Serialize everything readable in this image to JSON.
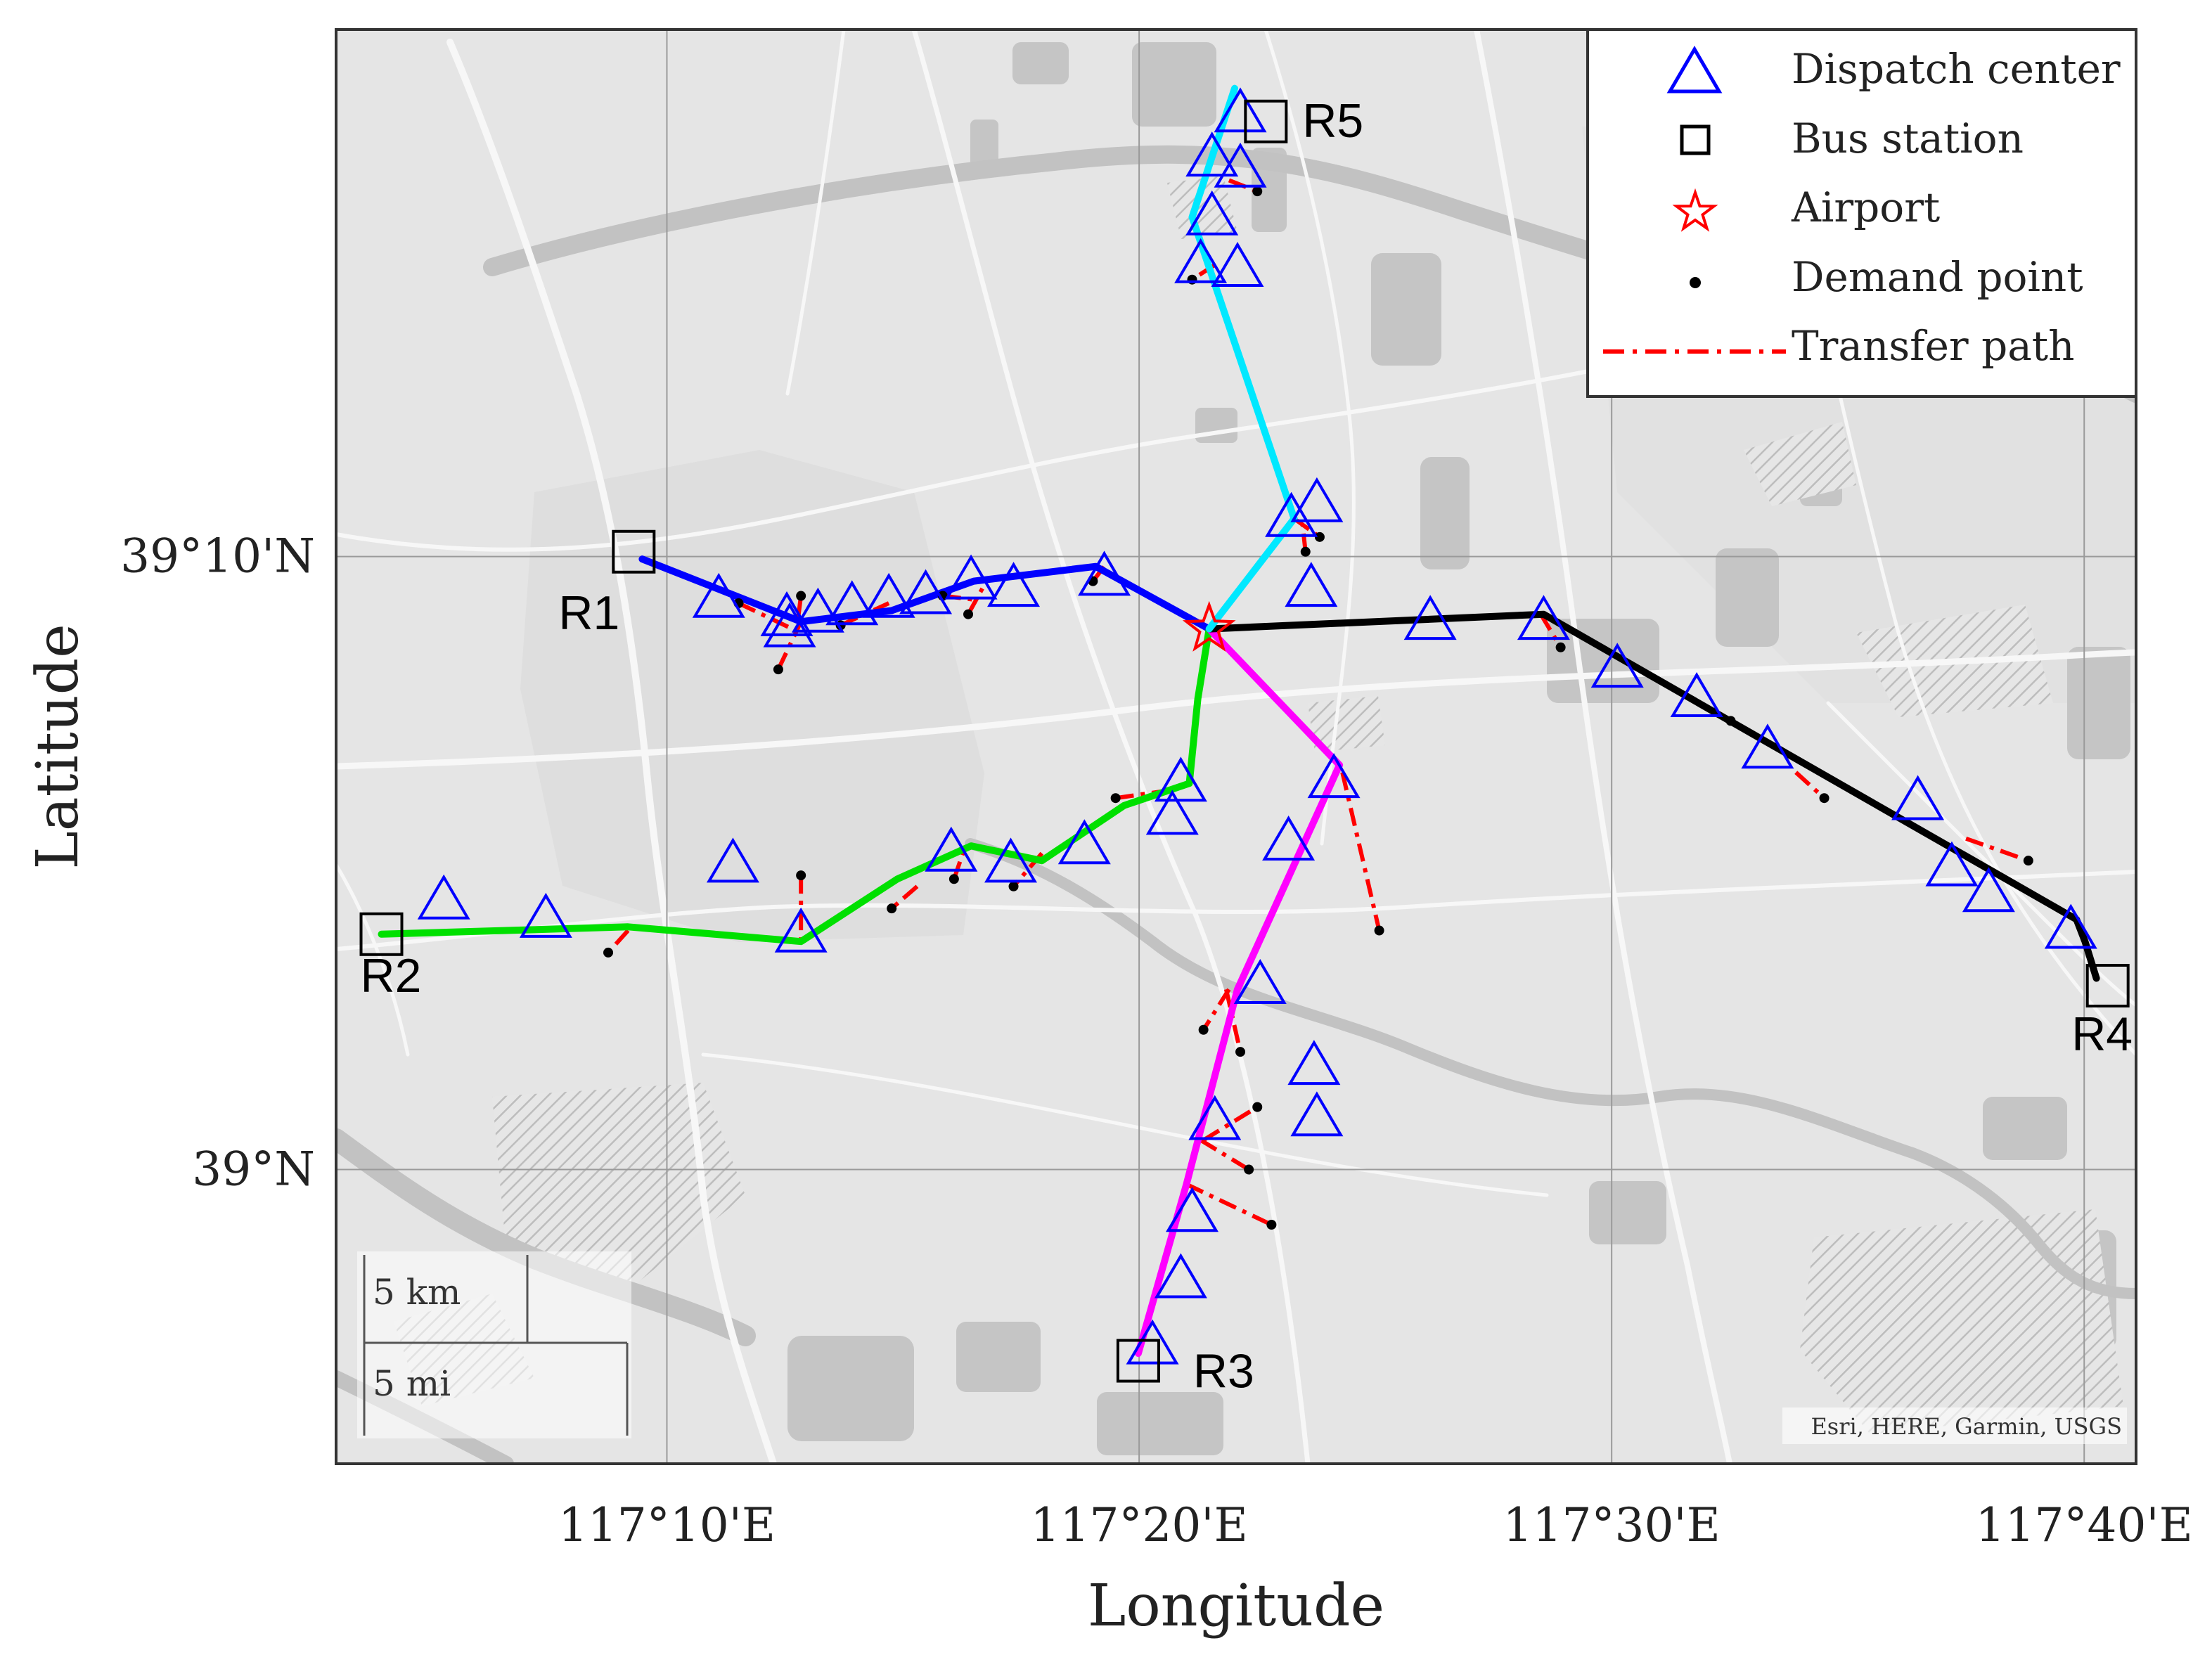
{
  "chart_data": {
    "type": "map",
    "xlabel": "Longitude",
    "ylabel": "Latitude",
    "x_ticks": [
      {
        "value": 117.1667,
        "label": "117°10'E"
      },
      {
        "value": 117.3333,
        "label": "117°20'E"
      },
      {
        "value": 117.5,
        "label": "117°30'E"
      },
      {
        "value": 117.6667,
        "label": "117°40'E"
      }
    ],
    "y_ticks": [
      {
        "value": 39.1667,
        "label": "39°10'N"
      },
      {
        "value": 39.0,
        "label": "39°N"
      }
    ],
    "xlim": [
      117.05,
      117.685
    ],
    "ylim": [
      38.92,
      39.31
    ],
    "grid": true,
    "legend_position": "top-right",
    "legend": [
      {
        "label": "Dispatch center",
        "marker": "triangle",
        "color": "#0000ff"
      },
      {
        "label": "Bus station",
        "marker": "square",
        "color": "#000000"
      },
      {
        "label": "Airport",
        "marker": "star",
        "color": "#ff0000"
      },
      {
        "label": "Demand point",
        "marker": "dot",
        "color": "#000000"
      },
      {
        "label": "Transfer path",
        "marker": "dashdot-line",
        "color": "#ff0000"
      }
    ],
    "attribution": "Esri, HERE, Garmin, USGS",
    "scale_bar": {
      "km_label": "5 km",
      "mi_label": "5 mi"
    },
    "airport": [
      117.358,
      39.147
    ],
    "bus_stations": [
      {
        "name": "R1",
        "lon": 117.155,
        "lat": 39.168
      },
      {
        "name": "R2",
        "lon": 117.066,
        "lat": 39.064
      },
      {
        "name": "R3",
        "lon": 117.333,
        "lat": 38.948
      },
      {
        "name": "R4",
        "lon": 117.675,
        "lat": 39.05
      },
      {
        "name": "R5",
        "lon": 117.378,
        "lat": 39.285
      }
    ],
    "routes": [
      {
        "name": "R1",
        "color": "#0000ff",
        "points": [
          [
            117.158,
            39.166
          ],
          [
            117.214,
            39.149
          ],
          [
            117.246,
            39.152
          ],
          [
            117.275,
            39.16
          ],
          [
            117.318,
            39.164
          ],
          [
            117.358,
            39.147
          ]
        ]
      },
      {
        "name": "R2",
        "color": "#00e000",
        "points": [
          [
            117.066,
            39.064
          ],
          [
            117.153,
            39.066
          ],
          [
            117.214,
            39.062
          ],
          [
            117.248,
            39.079
          ],
          [
            117.274,
            39.088
          ],
          [
            117.299,
            39.084
          ],
          [
            117.328,
            39.099
          ],
          [
            117.351,
            39.105
          ],
          [
            117.354,
            39.128
          ],
          [
            117.358,
            39.147
          ]
        ]
      },
      {
        "name": "R3",
        "color": "#ff00ff",
        "points": [
          [
            117.333,
            38.95
          ],
          [
            117.35,
            38.996
          ],
          [
            117.368,
            39.049
          ],
          [
            117.404,
            39.11
          ],
          [
            117.358,
            39.147
          ]
        ]
      },
      {
        "name": "R4",
        "color": "#000000",
        "points": [
          [
            117.358,
            39.147
          ],
          [
            117.476,
            39.151
          ],
          [
            117.553,
            39.117
          ],
          [
            117.664,
            39.068
          ],
          [
            117.667,
            39.062
          ],
          [
            117.671,
            39.052
          ]
        ]
      },
      {
        "name": "R5",
        "color": "#00e8ff",
        "points": [
          [
            117.358,
            39.147
          ],
          [
            117.388,
            39.177
          ],
          [
            117.352,
            39.259
          ],
          [
            117.367,
            39.294
          ]
        ]
      }
    ],
    "dispatch_centers": [
      [
        117.369,
        39.287
      ],
      [
        117.359,
        39.275
      ],
      [
        117.369,
        39.272
      ],
      [
        117.359,
        39.259
      ],
      [
        117.355,
        39.246
      ],
      [
        117.368,
        39.245
      ],
      [
        117.387,
        39.177
      ],
      [
        117.396,
        39.181
      ],
      [
        117.394,
        39.158
      ],
      [
        117.21,
        39.147
      ],
      [
        117.209,
        39.15
      ],
      [
        117.22,
        39.151
      ],
      [
        117.232,
        39.153
      ],
      [
        117.245,
        39.155
      ],
      [
        117.258,
        39.156
      ],
      [
        117.274,
        39.16
      ],
      [
        117.289,
        39.158
      ],
      [
        117.321,
        39.161
      ],
      [
        117.185,
        39.155
      ],
      [
        117.348,
        39.105
      ],
      [
        117.345,
        39.096
      ],
      [
        117.314,
        39.088
      ],
      [
        117.288,
        39.083
      ],
      [
        117.267,
        39.086
      ],
      [
        117.19,
        39.083
      ],
      [
        117.124,
        39.068
      ],
      [
        117.088,
        39.073
      ],
      [
        117.214,
        39.064
      ],
      [
        117.402,
        39.106
      ],
      [
        117.386,
        39.089
      ],
      [
        117.376,
        39.05
      ],
      [
        117.395,
        39.028
      ],
      [
        117.396,
        39.014
      ],
      [
        117.36,
        39.013
      ],
      [
        117.352,
        38.988
      ],
      [
        117.348,
        38.97
      ],
      [
        117.338,
        38.952
      ],
      [
        117.436,
        39.149
      ],
      [
        117.476,
        39.149
      ],
      [
        117.502,
        39.136
      ],
      [
        117.53,
        39.128
      ],
      [
        117.555,
        39.114
      ],
      [
        117.608,
        39.1
      ],
      [
        117.62,
        39.082
      ],
      [
        117.633,
        39.075
      ],
      [
        117.662,
        39.065
      ]
    ],
    "transfer_paths": [
      [
        [
          117.192,
          39.154
        ],
        [
          117.211,
          39.147
        ]
      ],
      [
        [
          117.206,
          39.136
        ],
        [
          117.214,
          39.149
        ]
      ],
      [
        [
          117.213,
          39.15
        ],
        [
          117.214,
          39.156
        ]
      ],
      [
        [
          117.228,
          39.148
        ],
        [
          117.245,
          39.154
        ]
      ],
      [
        [
          117.264,
          39.156
        ],
        [
          117.275,
          39.155
        ]
      ],
      [
        [
          117.273,
          39.151
        ],
        [
          117.278,
          39.158
        ]
      ],
      [
        [
          117.317,
          39.16
        ],
        [
          117.322,
          39.165
        ]
      ],
      [
        [
          117.388,
          39.177
        ],
        [
          117.397,
          39.172
        ]
      ],
      [
        [
          117.392,
          39.168
        ],
        [
          117.391,
          39.175
        ]
      ],
      [
        [
          117.475,
          39.151
        ],
        [
          117.482,
          39.142
        ]
      ],
      [
        [
          117.542,
          39.122
        ],
        [
          117.553,
          39.117
        ]
      ],
      [
        [
          117.565,
          39.108
        ],
        [
          117.575,
          39.101
        ]
      ],
      [
        [
          117.625,
          39.09
        ],
        [
          117.647,
          39.084
        ]
      ],
      [
        [
          117.36,
          39.246
        ],
        [
          117.352,
          39.242
        ]
      ],
      [
        [
          117.365,
          39.269
        ],
        [
          117.375,
          39.266
        ]
      ],
      [
        [
          117.405,
          39.108
        ],
        [
          117.418,
          39.065
        ]
      ],
      [
        [
          117.365,
          39.049
        ],
        [
          117.356,
          39.038
        ]
      ],
      [
        [
          117.364,
          39.049
        ],
        [
          117.369,
          39.032
        ]
      ],
      [
        [
          117.356,
          39.008
        ],
        [
          117.375,
          39.017
        ]
      ],
      [
        [
          117.355,
          39.008
        ],
        [
          117.372,
          39.0
        ]
      ],
      [
        [
          117.35,
          38.996
        ],
        [
          117.38,
          38.985
        ]
      ],
      [
        [
          117.214,
          39.08
        ],
        [
          117.214,
          39.062
        ]
      ],
      [
        [
          117.153,
          39.065
        ],
        [
          117.146,
          39.059
        ]
      ],
      [
        [
          117.255,
          39.077
        ],
        [
          117.246,
          39.071
        ]
      ],
      [
        [
          117.268,
          39.079
        ],
        [
          117.272,
          39.088
        ]
      ],
      [
        [
          117.299,
          39.086
        ],
        [
          117.289,
          39.077
        ]
      ],
      [
        [
          117.325,
          39.101
        ],
        [
          117.343,
          39.103
        ]
      ]
    ],
    "demand_points": [
      [
        117.192,
        39.154
      ],
      [
        117.206,
        39.136
      ],
      [
        117.214,
        39.156
      ],
      [
        117.228,
        39.148
      ],
      [
        117.264,
        39.156
      ],
      [
        117.273,
        39.151
      ],
      [
        117.317,
        39.16
      ],
      [
        117.397,
        39.172
      ],
      [
        117.392,
        39.168
      ],
      [
        117.482,
        39.142
      ],
      [
        117.542,
        39.122
      ],
      [
        117.575,
        39.101
      ],
      [
        117.647,
        39.084
      ],
      [
        117.352,
        39.242
      ],
      [
        117.375,
        39.266
      ],
      [
        117.418,
        39.065
      ],
      [
        117.356,
        39.038
      ],
      [
        117.369,
        39.032
      ],
      [
        117.375,
        39.017
      ],
      [
        117.372,
        39.0
      ],
      [
        117.38,
        38.985
      ],
      [
        117.214,
        39.08
      ],
      [
        117.146,
        39.059
      ],
      [
        117.246,
        39.071
      ],
      [
        117.268,
        39.079
      ],
      [
        117.289,
        39.077
      ],
      [
        117.325,
        39.101
      ]
    ]
  }
}
